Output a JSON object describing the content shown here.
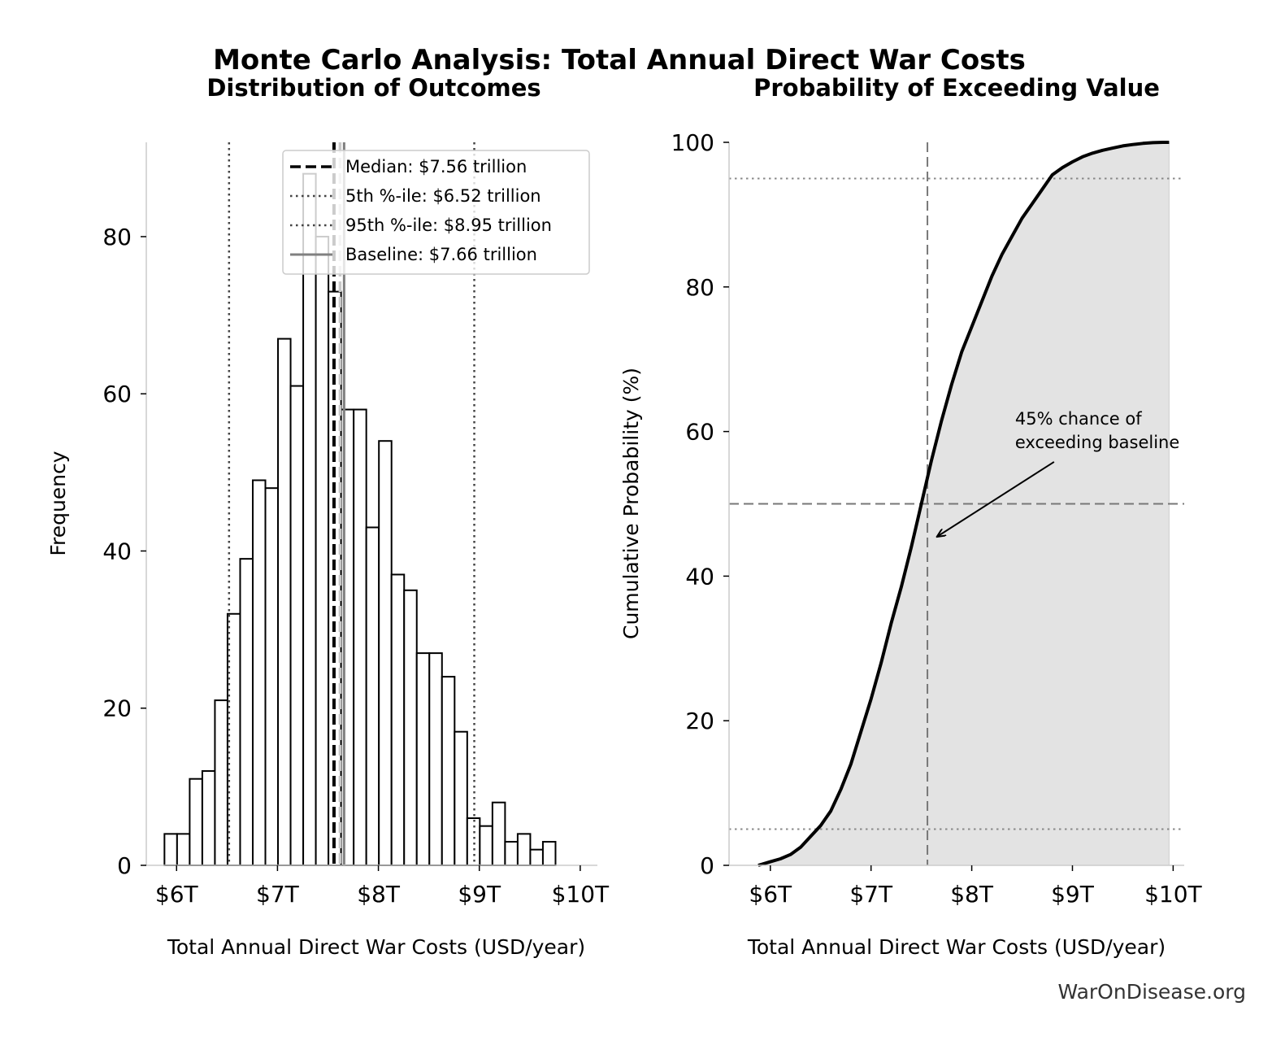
{
  "figure": {
    "title": "Monte Carlo Analysis: Total Annual Direct War Costs",
    "watermark": "WarOnDisease.org"
  },
  "chart_data": [
    {
      "type": "bar",
      "title": "Distribution of Outcomes",
      "xlabel": "Total Annual Direct War Costs (USD/year)",
      "ylabel": "Frequency",
      "xlim": [
        5.7,
        10.17
      ],
      "ylim": [
        0,
        92
      ],
      "xticks": [
        6,
        7,
        8,
        9,
        10
      ],
      "xtick_labels": [
        "$6T",
        "$7T",
        "$8T",
        "$9T",
        "$10T"
      ],
      "yticks": [
        0,
        20,
        40,
        60,
        80
      ],
      "ytick_labels": [
        "0",
        "20",
        "40",
        "60",
        "80"
      ],
      "bin_width": 0.125,
      "bin_start": 5.88,
      "values": [
        4,
        4,
        11,
        12,
        21,
        32,
        39,
        49,
        48,
        67,
        61,
        88,
        80,
        73,
        58,
        58,
        43,
        54,
        37,
        35,
        27,
        27,
        24,
        17,
        6,
        5,
        8,
        3,
        4,
        2,
        3
      ],
      "vlines": [
        {
          "name": "Median",
          "x": 7.56,
          "style": "dashed",
          "color": "#000000"
        },
        {
          "name": "5th %-ile",
          "x": 6.52,
          "style": "dotted",
          "color": "#444444"
        },
        {
          "name": "95th %-ile",
          "x": 8.95,
          "style": "dotted",
          "color": "#444444"
        },
        {
          "name": "Baseline",
          "x": 7.66,
          "style": "solid",
          "color": "#808080"
        }
      ],
      "extra_vline": {
        "x": 7.62,
        "style": "dashed",
        "color": "#c8c8c8"
      },
      "legend": {
        "position": "top-right",
        "entries": [
          "Median: $7.56 trillion",
          "5th %-ile: $6.52 trillion",
          "95th %-ile: $8.95 trillion",
          "Baseline: $7.66 trillion"
        ]
      },
      "grid": false
    },
    {
      "type": "line",
      "title": "Probability of Exceeding Value",
      "xlabel": "Total Annual Direct War Costs (USD/year)",
      "ylabel": "Cumulative Probability (%)",
      "xlim": [
        5.59,
        10.11
      ],
      "ylim": [
        0,
        100
      ],
      "xticks": [
        6,
        7,
        8,
        9,
        10
      ],
      "xtick_labels": [
        "$6T",
        "$7T",
        "$8T",
        "$9T",
        "$10T"
      ],
      "yticks": [
        0,
        20,
        40,
        60,
        80,
        100
      ],
      "ytick_labels": [
        "0",
        "20",
        "40",
        "60",
        "80",
        "100"
      ],
      "x": [
        5.88,
        6.0,
        6.1,
        6.2,
        6.3,
        6.4,
        6.5,
        6.6,
        6.7,
        6.8,
        6.9,
        7.0,
        7.1,
        7.2,
        7.3,
        7.4,
        7.5,
        7.6,
        7.7,
        7.8,
        7.9,
        8.0,
        8.1,
        8.2,
        8.3,
        8.4,
        8.5,
        8.6,
        8.7,
        8.8,
        8.9,
        9.0,
        9.1,
        9.2,
        9.3,
        9.4,
        9.5,
        9.6,
        9.7,
        9.8,
        9.9,
        9.96
      ],
      "y": [
        0,
        0.5,
        0.9,
        1.5,
        2.5,
        4,
        5.5,
        7.5,
        10.5,
        14,
        18.5,
        23,
        28,
        33.5,
        38.5,
        44,
        50,
        56,
        61.5,
        66.5,
        71,
        74.5,
        78,
        81.5,
        84.5,
        87,
        89.5,
        91.5,
        93.5,
        95.5,
        96.5,
        97.3,
        98,
        98.5,
        98.9,
        99.2,
        99.5,
        99.7,
        99.85,
        99.95,
        100,
        100
      ],
      "hlines": [
        {
          "y": 95,
          "style": "dotted",
          "color": "#888888"
        },
        {
          "y": 50,
          "style": "dashed",
          "color": "#777777"
        },
        {
          "y": 5,
          "style": "dotted",
          "color": "#888888"
        }
      ],
      "vline": {
        "x": 7.56,
        "style": "dashed",
        "color": "#777777"
      },
      "fill_color": "#e3e3e3",
      "annotation": {
        "lines": [
          "45% chance of",
          "exceeding baseline"
        ],
        "arrow_to": {
          "x": 7.66,
          "y": 45.5
        },
        "text_at": {
          "x": 8.43,
          "y": 58.5
        }
      },
      "grid": false
    }
  ]
}
